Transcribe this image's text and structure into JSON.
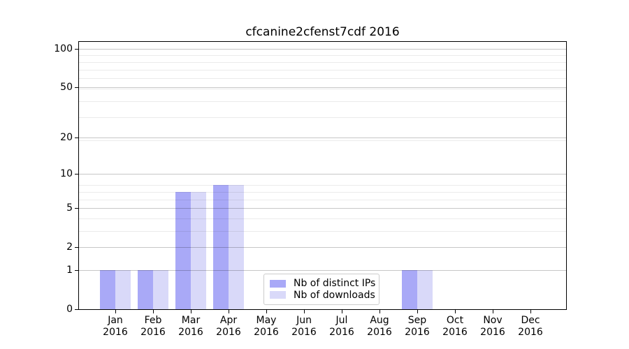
{
  "title": "cfcanine2cfenst7cdf 2016",
  "chart_data": {
    "type": "bar",
    "title": "cfcanine2cfenst7cdf 2016",
    "categories": [
      "Jan 2016",
      "Feb 2016",
      "Mar 2016",
      "Apr 2016",
      "May 2016",
      "Jun 2016",
      "Jul 2016",
      "Aug 2016",
      "Sep 2016",
      "Oct 2016",
      "Nov 2016",
      "Dec 2016"
    ],
    "series": [
      {
        "name": "Nb of distinct IPs",
        "color": "#a9a9f7",
        "values": [
          1,
          1,
          7,
          8,
          0,
          0,
          0,
          0,
          1,
          0,
          0,
          0
        ]
      },
      {
        "name": "Nb of downloads",
        "color": "#d9d9f9",
        "values": [
          1,
          1,
          7,
          8,
          0,
          0,
          0,
          0,
          1,
          0,
          0,
          0
        ]
      }
    ],
    "xlabel": "",
    "ylabel": "",
    "yscale": "log10(1+y)",
    "yticks": [
      0,
      1,
      2,
      5,
      10,
      20,
      50,
      100
    ],
    "ylim": [
      0,
      113.3
    ],
    "grid": "horizontal major and log-minor gridlines",
    "legend_position": "inside lower-center"
  },
  "colors": {
    "background": "#ffffff",
    "axis": "#000000",
    "grid_major": "rgba(0,0,0,0.22)",
    "grid_minor": "rgba(0,0,0,0.08)",
    "legend_border": "#cccccc",
    "text": "#000000"
  }
}
